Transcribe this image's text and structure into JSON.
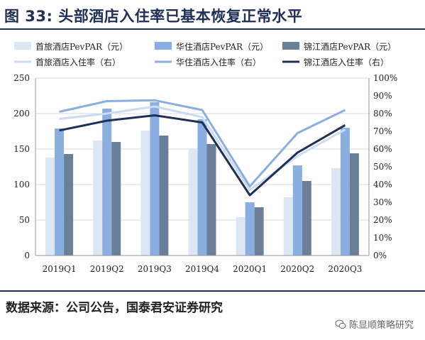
{
  "header": {
    "title": "图 33: 头部酒店入住率已基本恢复正常水平"
  },
  "footer": {
    "source": "数据来源：公司公告，国泰君安证券研究",
    "watermark": "陈显顺策略研究"
  },
  "colors": {
    "text": "#222222",
    "title": "#1f2f55",
    "grid": "#d9d9d9",
    "bar_shouly": "#dde7f3",
    "bar_huazhu": "#8aaedf",
    "bar_jinjiang": "#6b7f99",
    "line_shouly": "#ccdcf0",
    "line_huazhu": "#8aaedf",
    "line_jinjiang": "#1f2f55"
  },
  "chart_data": {
    "type": "bar",
    "title": "头部酒店入住率已基本恢复正常水平",
    "categories": [
      "2019Q1",
      "2019Q2",
      "2019Q3",
      "2019Q4",
      "2020Q1",
      "2020Q2",
      "2020Q3"
    ],
    "y_left": {
      "min": 0,
      "max": 250,
      "ticks": [
        "0",
        "50",
        "100",
        "150",
        "200",
        "250"
      ]
    },
    "y_right": {
      "min": 0,
      "max": 100,
      "ticks": [
        "0%",
        "10%",
        "20%",
        "30%",
        "40%",
        "50%",
        "60%",
        "70%",
        "80%",
        "90%",
        "100%"
      ]
    },
    "grid": true,
    "legend_position": "top",
    "bar_series": [
      {
        "name": "首旅酒店PevPAR（元）",
        "values": [
          138,
          162,
          176,
          151,
          54,
          82,
          123
        ]
      },
      {
        "name": "华住酒店PevPAR（元）",
        "values": [
          179,
          207,
          216,
          192,
          75,
          127,
          180
        ]
      },
      {
        "name": "锦江酒店PevPAR（元）",
        "values": [
          143,
          160,
          169,
          157,
          68,
          105,
          144
        ]
      }
    ],
    "line_series": [
      {
        "name": "首旅酒店入住率（右）",
        "values": [
          77,
          80,
          84,
          78,
          37,
          56,
          71
        ]
      },
      {
        "name": "华住酒店入住率（右）",
        "values": [
          81,
          87,
          87.5,
          82,
          39,
          69,
          82
        ]
      },
      {
        "name": "锦江酒店入住率（右）",
        "values": [
          70.5,
          76,
          79,
          75,
          34,
          58,
          73.5
        ]
      }
    ]
  }
}
